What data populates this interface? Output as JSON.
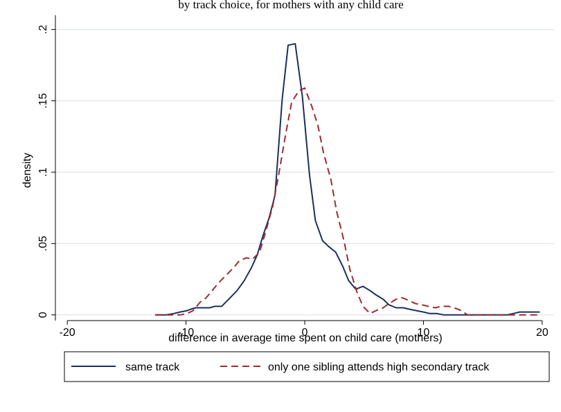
{
  "top_caption": "by track choice, for mothers with any child care",
  "chart_data": {
    "type": "line",
    "xlabel": "difference in average time spent on child care (mothers)",
    "ylabel": "density",
    "xlim": [
      -21,
      21
    ],
    "ylim": [
      -0.004,
      0.21
    ],
    "xticks": [
      -20,
      -10,
      0,
      10,
      20
    ],
    "xtick_labels": [
      "-20",
      "-10",
      "0",
      "10",
      "20"
    ],
    "yticks": [
      0,
      0.05,
      0.1,
      0.15,
      0.2
    ],
    "ytick_labels": [
      "0",
      ".05",
      ".1",
      ".15",
      ".2"
    ],
    "grid": true,
    "legend": {
      "placement": "bottom"
    },
    "series": [
      {
        "name": "same track",
        "color": "#1a2f5e",
        "dash": "solid",
        "x": [
          -12.6,
          -11.7,
          -11,
          -10.5,
          -9.9,
          -9.6,
          -9.2,
          -8.6,
          -8,
          -7.6,
          -7,
          -6.4,
          -5.7,
          -5.1,
          -4.5,
          -4,
          -3.5,
          -3,
          -2.5,
          -1.9,
          -1.4,
          -0.8,
          -0.2,
          0.4,
          0.9,
          1.5,
          2,
          2.6,
          3.2,
          3.7,
          4.3,
          4.9,
          5.5,
          6,
          6.6,
          7.1,
          7.7,
          8.3,
          8.8,
          9.4,
          10,
          10.5,
          11.1,
          11.7,
          12.2,
          12.8,
          13.4,
          14,
          14.6,
          15.2,
          15.8,
          16.4,
          17,
          17.6,
          18.1,
          18.7,
          19.3,
          19.8
        ],
        "y": [
          0,
          0,
          0.001,
          0.002,
          0.003,
          0.004,
          0.005,
          0.005,
          0.005,
          0.006,
          0.006,
          0.011,
          0.017,
          0.024,
          0.033,
          0.042,
          0.056,
          0.068,
          0.084,
          0.151,
          0.189,
          0.19,
          0.153,
          0.098,
          0.066,
          0.052,
          0.048,
          0.044,
          0.034,
          0.024,
          0.018,
          0.02,
          0.017,
          0.014,
          0.011,
          0.007,
          0.005,
          0.005,
          0.004,
          0.003,
          0.002,
          0.001,
          0.001,
          0,
          0,
          0,
          0,
          0,
          0,
          0,
          0,
          0,
          0,
          0.001,
          0.002,
          0.002,
          0.002,
          0.002
        ]
      },
      {
        "name": "only one sibling attends high secondary track",
        "color": "#9e2a2b",
        "dash": "dashed",
        "x": [
          -12.6,
          -11.7,
          -11,
          -10.5,
          -9.9,
          -9.4,
          -8.8,
          -8.3,
          -7.7,
          -7.2,
          -6.6,
          -6,
          -5.5,
          -4.9,
          -4.4,
          -3.8,
          -3.3,
          -2.7,
          -2.2,
          -1.6,
          -1.1,
          -0.5,
          0,
          0.6,
          1.1,
          1.6,
          2.2,
          2.7,
          3.3,
          3.8,
          4.4,
          4.9,
          5.5,
          6,
          6.6,
          7.1,
          7.7,
          8.2,
          8.8,
          9.3,
          9.9,
          10.4,
          11,
          11.5,
          12.1,
          12.6,
          13.2,
          13.7,
          14.3,
          14.8,
          15.4,
          15.9,
          16.5,
          17.1,
          17.6,
          18.2,
          18.7,
          19.3,
          19.8
        ],
        "y": [
          0,
          0,
          0,
          0,
          0.001,
          0.003,
          0.009,
          0.012,
          0.018,
          0.023,
          0.028,
          0.033,
          0.038,
          0.04,
          0.039,
          0.044,
          0.058,
          0.076,
          0.098,
          0.127,
          0.149,
          0.157,
          0.159,
          0.146,
          0.133,
          0.113,
          0.095,
          0.072,
          0.052,
          0.032,
          0.016,
          0.006,
          0.001,
          0.003,
          0.005,
          0.008,
          0.011,
          0.012,
          0.01,
          0.008,
          0.007,
          0.006,
          0.005,
          0.006,
          0.006,
          0.005,
          0.003,
          0,
          0,
          0,
          0,
          0,
          0,
          0,
          0,
          0,
          0,
          0,
          0
        ]
      }
    ]
  }
}
